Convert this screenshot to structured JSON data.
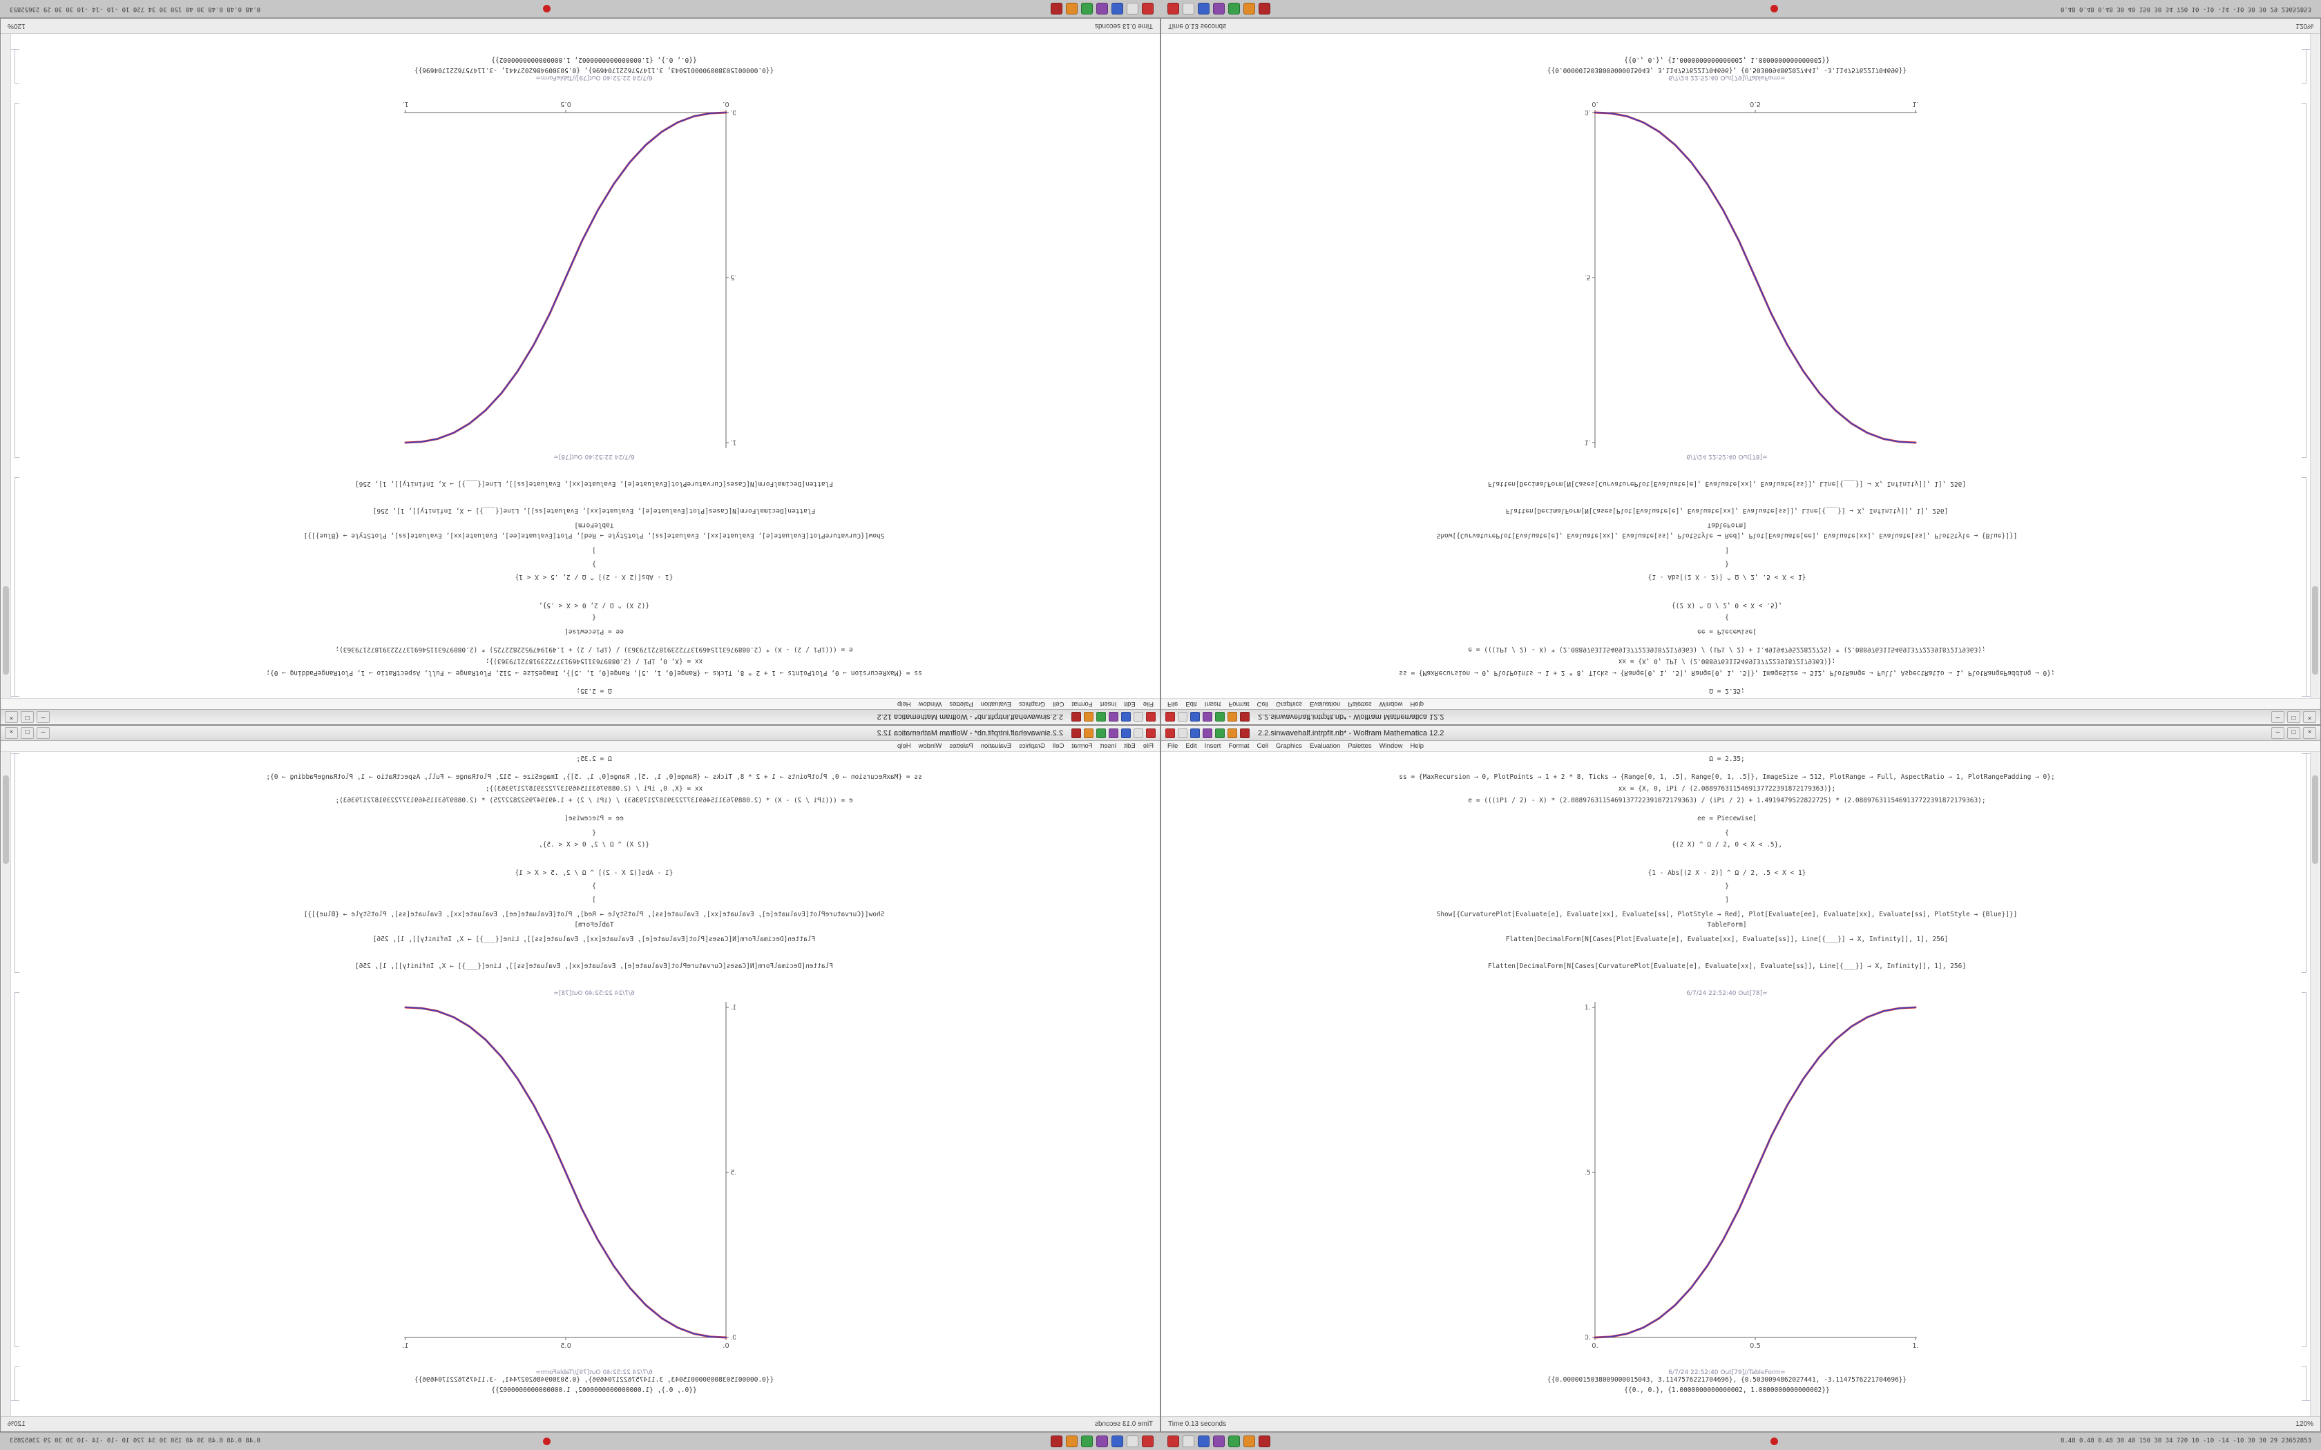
{
  "window": {
    "title": "2.2.sinwavehalf.intrpfit.nb* - Wolfram Mathematica 12.2",
    "menu": [
      "File",
      "Edit",
      "Insert",
      "Format",
      "Cell",
      "Graphics",
      "Evaluation",
      "Palettes",
      "Window",
      "Help"
    ],
    "buttons": {
      "minimize": "–",
      "maximize": "□",
      "close": "×"
    },
    "status_left": "Time 0.13 seconds",
    "status_right": "120%"
  },
  "notebook": {
    "input_lines": [
      "Ω = 2.35;",
      "ss = {MaxRecursion → 0, PlotPoints → 1 + 2 * 8, Ticks → {Range[0, 1, .5], Range[0, 1, .5]}, ImageSize → 512, PlotRange → Full, AspectRatio → 1, PlotRangePadding → 0};",
      "xx = {X, 0, iPi / (2.0889763115469137722391872179363)};",
      "e = (((iPi / 2) - X) * (2.0889763115469137722391872179363) / (iPi / 2) + 1.4919479522822725) * (2.0889763115469137722391872179363);",
      "ee = Piecewise[",
      "{",
      "{(2 X) ^ Ω / 2, 0 < X < .5},",
      "{1 - Abs[(2 X - 2)] ^ Ω / 2, .5 < X < 1}",
      "}",
      "]",
      "Show[{CurvaturePlot[Evaluate[e], Evaluate[xx], Evaluate[ss], PlotStyle → Red], Plot[Evaluate[ee], Evaluate[xx], Evaluate[ss], PlotStyle → {Blue}]}]",
      "TableForm]",
      "Flatten[DecimalForm[N[Cases[Plot[Evaluate[e], Evaluate[xx], Evaluate[ss]], Line[{___}] → X, Infinity]], 1], 256]",
      "Flatten[DecimalForm[N[Cases[CurvaturePlot[Evaluate[e], Evaluate[xx], Evaluate[ss]], Line[{___}] → X, Infinity]], 1], 256]"
    ],
    "out_label_plot": "6/7/24 22:52:40 Out[78]=",
    "out_label_table": "6/7/24 22:52:40 Out[79]//TableForm=",
    "out_rows": [
      "{{0.0000015038009000015043, 3.1147576221704696}, {0.5030094862027441, -3.1147576221704696}}",
      "{{0., 0.}, {1.0000000000000002, 1.0000000000000002}}"
    ]
  },
  "taskbar": {
    "app_icons": [
      {
        "name": "app-icon-red",
        "color": "#c83232"
      },
      {
        "name": "app-icon-light",
        "color": "#e0e0e0"
      },
      {
        "name": "app-icon-blue",
        "color": "#3a62c8"
      },
      {
        "name": "app-icon-purple",
        "color": "#8a4aaa"
      },
      {
        "name": "app-icon-green",
        "color": "#3aa04a"
      },
      {
        "name": "app-icon-orange",
        "color": "#e08a28"
      },
      {
        "name": "app-icon-darkred",
        "color": "#b02828"
      }
    ],
    "alert_color": "#cc2020",
    "sysmon_text": "0.48 0.48 0.48   30 40 150 30 34 720   10 -10 -14 -10   30 30 29   23652853"
  },
  "chart_data": {
    "type": "line",
    "title": "",
    "xlabel": "",
    "ylabel": "",
    "x": [
      0,
      0.05,
      0.1,
      0.15,
      0.2,
      0.25,
      0.3,
      0.35,
      0.4,
      0.45,
      0.5,
      0.55,
      0.6,
      0.65,
      0.7,
      0.75,
      0.8,
      0.85,
      0.9,
      0.95,
      1
    ],
    "series": [
      {
        "name": "CurvaturePlot (red)",
        "color": "#d02830",
        "values": [
          0,
          0.0022,
          0.0114,
          0.0295,
          0.058,
          0.098,
          0.1505,
          0.2163,
          0.296,
          0.3904,
          0.5,
          0.6096,
          0.704,
          0.7837,
          0.8495,
          0.902,
          0.942,
          0.9705,
          0.9886,
          0.9978,
          1
        ]
      },
      {
        "name": "Plot (blue)",
        "color": "#2840d0",
        "values": [
          0,
          0.0022,
          0.0114,
          0.0295,
          0.058,
          0.098,
          0.1505,
          0.2163,
          0.296,
          0.3904,
          0.5,
          0.6096,
          0.704,
          0.7837,
          0.8495,
          0.902,
          0.942,
          0.9705,
          0.9886,
          0.9978,
          1
        ]
      }
    ],
    "xlim": [
      0,
      1
    ],
    "ylim": [
      0,
      1
    ],
    "xticks": [
      "0.",
      "0.5",
      "1."
    ],
    "yticks": [
      "0.",
      "0.5",
      "1."
    ],
    "grid": false,
    "legend": false
  }
}
